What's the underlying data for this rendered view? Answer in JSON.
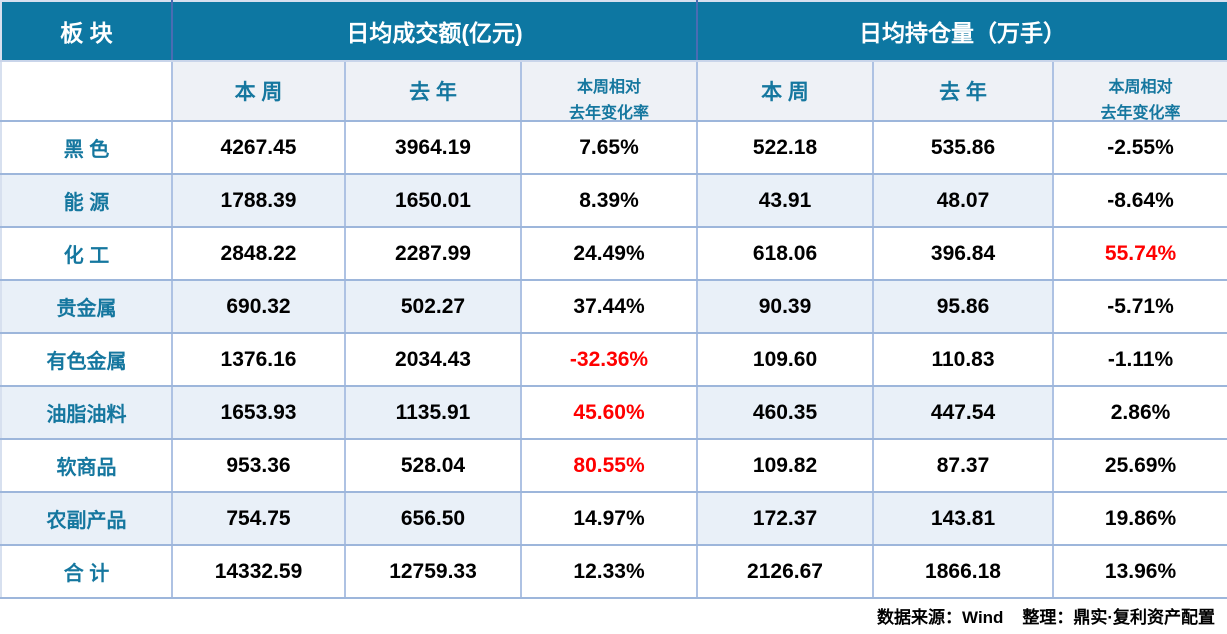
{
  "table": {
    "header": {
      "sector": "板 块",
      "turnover_group": "日均成交额(亿元)",
      "open_interest_group": "日均持仓量（万手）",
      "week": "本 周",
      "last_year": "去 年",
      "change_line1": "本周相对",
      "change_line2": "去年变化率"
    },
    "rows": [
      {
        "label": "黑 色",
        "turnover": {
          "week": "4267.45",
          "last_year": "3964.19",
          "change": "7.65%",
          "change_red": false
        },
        "open_interest": {
          "week": "522.18",
          "last_year": "535.86",
          "change": "-2.55%",
          "change_red": false
        }
      },
      {
        "label": "能 源",
        "turnover": {
          "week": "1788.39",
          "last_year": "1650.01",
          "change": "8.39%",
          "change_red": false
        },
        "open_interest": {
          "week": "43.91",
          "last_year": "48.07",
          "change": "-8.64%",
          "change_red": false
        }
      },
      {
        "label": "化 工",
        "turnover": {
          "week": "2848.22",
          "last_year": "2287.99",
          "change": "24.49%",
          "change_red": false
        },
        "open_interest": {
          "week": "618.06",
          "last_year": "396.84",
          "change": "55.74%",
          "change_red": true
        }
      },
      {
        "label": "贵金属",
        "turnover": {
          "week": "690.32",
          "last_year": "502.27",
          "change": "37.44%",
          "change_red": false
        },
        "open_interest": {
          "week": "90.39",
          "last_year": "95.86",
          "change": "-5.71%",
          "change_red": false
        }
      },
      {
        "label": "有色金属",
        "turnover": {
          "week": "1376.16",
          "last_year": "2034.43",
          "change": "-32.36%",
          "change_red": true
        },
        "open_interest": {
          "week": "109.60",
          "last_year": "110.83",
          "change": "-1.11%",
          "change_red": false
        }
      },
      {
        "label": "油脂油料",
        "turnover": {
          "week": "1653.93",
          "last_year": "1135.91",
          "change": "45.60%",
          "change_red": true
        },
        "open_interest": {
          "week": "460.35",
          "last_year": "447.54",
          "change": "2.86%",
          "change_red": false
        }
      },
      {
        "label": "软商品",
        "turnover": {
          "week": "953.36",
          "last_year": "528.04",
          "change": "80.55%",
          "change_red": true
        },
        "open_interest": {
          "week": "109.82",
          "last_year": "87.37",
          "change": "25.69%",
          "change_red": false
        }
      },
      {
        "label": "农副产品",
        "turnover": {
          "week": "754.75",
          "last_year": "656.50",
          "change": "14.97%",
          "change_red": false
        },
        "open_interest": {
          "week": "172.37",
          "last_year": "143.81",
          "change": "19.86%",
          "change_red": false
        }
      },
      {
        "label": "合 计",
        "turnover": {
          "week": "14332.59",
          "last_year": "12759.33",
          "change": "12.33%",
          "change_red": false
        },
        "open_interest": {
          "week": "2126.67",
          "last_year": "1866.18",
          "change": "13.96%",
          "change_red": false
        }
      }
    ]
  },
  "footer": {
    "source": "数据来源：Wind    整理：鼎实·复利资产配置"
  },
  "colors": {
    "header_bg": "#0d77a2",
    "header_text": "#ffffff",
    "accent_text": "#15779f",
    "stripe_bg": "#e9f0f8",
    "subheader_bg": "#eef1f6",
    "grid_border": "#aec2e3",
    "row_border": "#9db6db",
    "negative_highlight": "#ff0000",
    "value_text": "#000000"
  }
}
